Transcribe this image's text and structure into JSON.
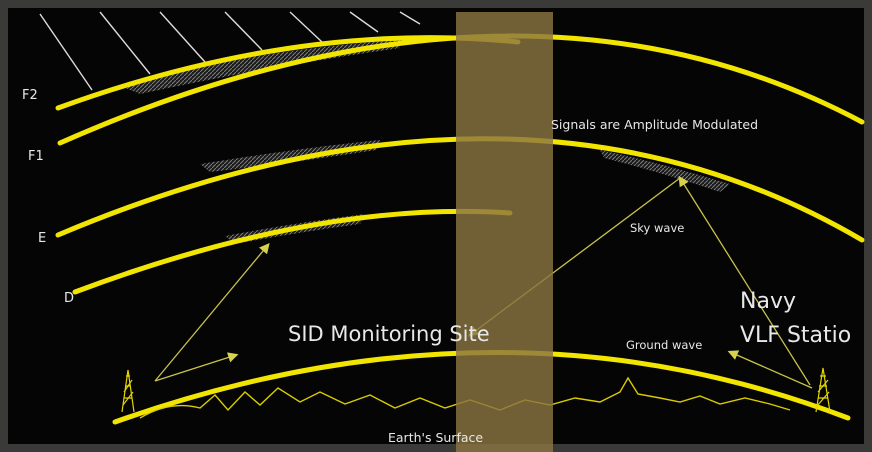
{
  "layers": {
    "f2": "F2",
    "f1": "F1",
    "e": "E",
    "d": "D"
  },
  "labels": {
    "signals": "Signals are Amplitude Modulated",
    "sky_wave": "Sky wave",
    "ground_wave": "Ground wave",
    "navy_line1": "Navy",
    "navy_line2": "VLF Statio",
    "sid_site": "SID Monitoring Site",
    "earth_surface": "Earth's Surface"
  },
  "colors": {
    "arc": "#f2e600",
    "ray": "#c9c34a",
    "band": "#8a7442",
    "background": "#050505"
  }
}
